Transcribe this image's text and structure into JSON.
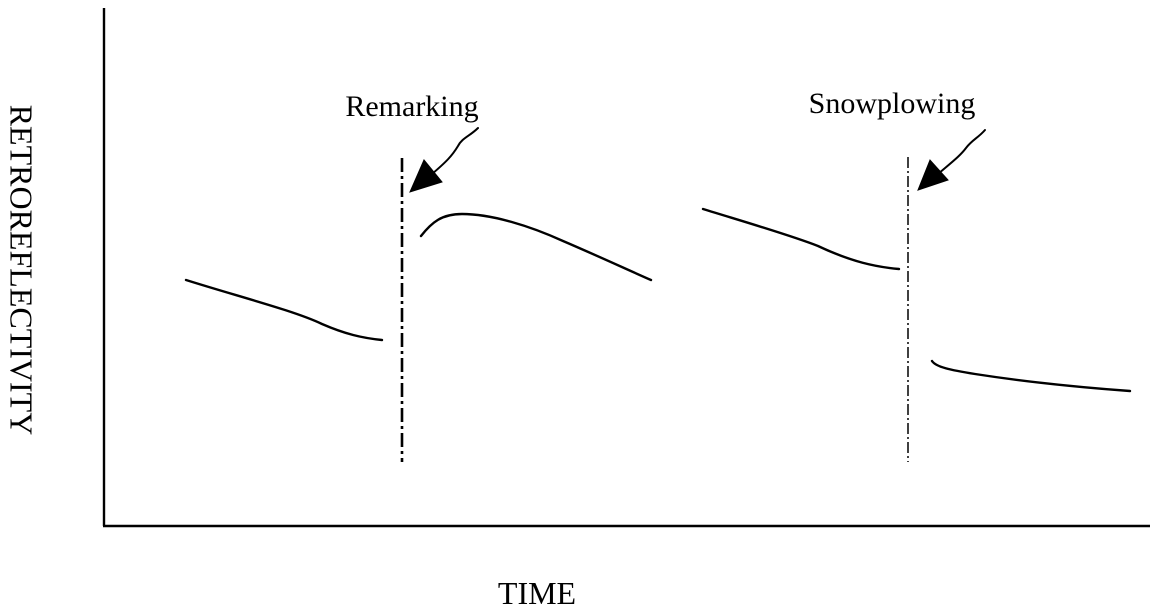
{
  "axes": {
    "x_label": "TIME",
    "y_label": "RETROREFLECTIVITY"
  },
  "events": [
    {
      "label": "Remarking"
    },
    {
      "label": "Snowplowing"
    }
  ],
  "colors": {
    "stroke": "#000000",
    "background": "#ffffff"
  }
}
